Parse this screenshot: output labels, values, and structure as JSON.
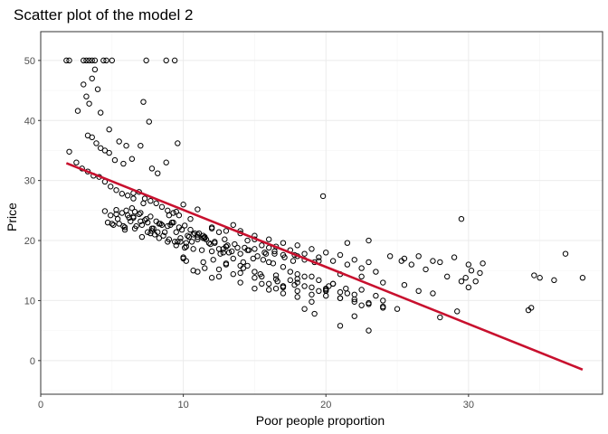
{
  "chart_data": {
    "type": "scatter",
    "title": "Scatter plot of the model 2",
    "xlabel": "Poor people proportion",
    "ylabel": "Price",
    "xlim": [
      0,
      39.4
    ],
    "ylim": [
      -5.6,
      54.8
    ],
    "x_ticks": [
      0,
      10,
      20,
      30
    ],
    "x_tick_labels": [
      "0",
      "10",
      "20",
      "30"
    ],
    "y_ticks": [
      0,
      10,
      20,
      30,
      40,
      50
    ],
    "y_tick_labels": [
      "0",
      "10",
      "20",
      "30",
      "40",
      "50"
    ],
    "grid": true,
    "colors": {
      "points": "#000000",
      "fit_line": "#c8102e",
      "grid": "#ebebeb",
      "border": "#333333"
    },
    "fit_line": {
      "x": [
        1.8,
        38.0
      ],
      "y": [
        32.9,
        -1.5
      ]
    },
    "points": {
      "x": [
        1.8,
        2.0,
        3.0,
        3.2,
        3.4,
        3.6,
        3.8,
        4.4,
        4.6,
        5.0,
        7.4,
        8.8,
        9.4,
        3.0,
        3.2,
        3.4,
        3.6,
        3.8,
        4.0,
        4.2,
        4.8,
        5.5,
        6.0,
        7.2,
        7.6,
        2.6,
        3.3,
        3.6,
        3.9,
        4.2,
        4.5,
        4.8,
        5.2,
        5.8,
        6.4,
        7.0,
        7.8,
        8.2,
        8.8,
        9.6,
        2.0,
        2.5,
        2.9,
        3.3,
        3.7,
        4.1,
        4.5,
        4.9,
        5.3,
        5.7,
        6.1,
        6.5,
        6.9,
        7.3,
        7.7,
        8.1,
        8.5,
        8.9,
        9.3,
        9.7,
        4.5,
        4.9,
        5.3,
        5.7,
        6.1,
        6.5,
        6.9,
        7.3,
        7.7,
        8.1,
        8.5,
        8.9,
        9.3,
        9.7,
        10.1,
        10.5,
        4.7,
        5.1,
        5.5,
        5.9,
        6.3,
        6.7,
        7.1,
        7.5,
        7.9,
        8.3,
        8.7,
        9.1,
        9.5,
        9.9,
        10.3,
        10.7,
        11.1,
        5.0,
        5.4,
        5.8,
        6.2,
        6.6,
        7.0,
        7.4,
        7.8,
        8.2,
        8.6,
        9.0,
        9.4,
        9.8,
        10.2,
        10.6,
        11.0,
        11.4,
        11.8,
        5.3,
        5.9,
        6.5,
        7.1,
        7.7,
        8.3,
        8.9,
        9.5,
        10.1,
        10.7,
        11.3,
        11.9,
        12.5,
        13.1,
        6.0,
        6.6,
        7.2,
        7.8,
        8.4,
        9.0,
        9.6,
        10.2,
        10.8,
        11.4,
        12.0,
        12.6,
        13.2,
        13.8,
        9.5,
        10.0,
        10.5,
        11.0,
        11.5,
        12.0,
        12.5,
        13.0,
        13.5,
        14.0,
        14.5,
        15.0,
        15.5,
        16.0,
        9.8,
        10.4,
        11.0,
        11.6,
        12.2,
        12.8,
        13.4,
        14.0,
        14.6,
        15.2,
        15.8,
        16.4,
        10.0,
        10.7,
        11.4,
        12.1,
        12.8,
        13.5,
        14.2,
        14.9,
        15.6,
        16.3,
        17.0,
        17.7,
        11.5,
        12.2,
        12.9,
        13.6,
        14.3,
        15.0,
        15.7,
        16.4,
        17.1,
        17.8,
        18.5,
        19.2,
        11.0,
        12.0,
        13.0,
        14.0,
        15.0,
        16.0,
        17.0,
        18.0,
        12.5,
        13.5,
        14.5,
        15.5,
        16.5,
        17.5,
        18.5,
        19.5,
        20.5,
        13.0,
        14.2,
        15.4,
        16.6,
        17.8,
        19.0,
        20.2,
        21.4,
        14.0,
        15.0,
        16.0,
        17.0,
        18.0,
        19.0,
        20.0,
        21.0,
        22.0,
        15.5,
        16.5,
        17.5,
        18.5,
        19.5,
        20.5,
        21.5,
        22.5,
        23.5,
        16.0,
        17.0,
        18.0,
        19.0,
        20.0,
        21.0,
        22.0,
        23.0,
        24.0,
        17.0,
        18.0,
        19.0,
        20.0,
        21.0,
        22.0,
        23.0,
        24.0,
        25.0,
        12.0,
        13.0,
        14.0,
        15.0,
        16.0,
        17.0,
        18.0,
        19.0,
        20.0,
        21.0,
        22.0,
        23.0,
        16.5,
        17.5,
        18.5,
        19.5,
        20.5,
        21.5,
        22.5,
        23.5,
        18.0,
        19.5,
        21.0,
        22.5,
        24.0,
        25.5,
        26.5,
        27.5,
        19.8,
        21.5,
        23.0,
        24.5,
        25.3,
        26.0,
        27.0,
        28.5,
        29.5,
        25.5,
        26.5,
        27.5,
        28.0,
        29.0,
        30.0,
        30.2,
        30.8,
        31.0,
        29.5,
        29.8,
        30.5,
        30.0,
        34.2,
        34.4,
        34.6,
        35.0,
        36.0,
        36.8,
        38.0,
        10.0,
        10.2,
        11.5,
        12.5,
        14.0,
        15.0,
        17.0,
        18.5,
        19.2,
        21.0,
        22.0,
        23.0,
        6.4,
        6.5,
        7.0,
        7.5,
        8.0,
        9.2,
        11.0,
        13.0,
        14.5,
        16.5,
        18.0,
        20.0,
        22.5,
        24.0,
        28.0,
        29.2
      ],
      "y": [
        50,
        50,
        50,
        50,
        50,
        50,
        50,
        50,
        50,
        50,
        50,
        50,
        50,
        46.0,
        44.0,
        42.8,
        47.0,
        48.5,
        45.2,
        41.3,
        38.5,
        36.5,
        35.8,
        43.1,
        39.8,
        41.6,
        37.5,
        37.2,
        36.2,
        35.4,
        35.0,
        34.6,
        33.4,
        32.8,
        33.6,
        35.8,
        32.0,
        31.2,
        33.0,
        36.2,
        34.8,
        33.0,
        32.0,
        31.5,
        30.8,
        30.6,
        29.8,
        29.0,
        28.4,
        27.8,
        27.5,
        27.9,
        28.1,
        27.0,
        26.6,
        26.2,
        25.6,
        25.0,
        24.6,
        24.2,
        24.9,
        24.2,
        25.1,
        24.6,
        24.2,
        23.8,
        24.4,
        23.4,
        24.0,
        23.2,
        22.6,
        22.4,
        23.0,
        22.2,
        22.5,
        21.8,
        23.0,
        22.6,
        22.8,
        22.2,
        23.2,
        22.4,
        22.6,
        23.0,
        22.0,
        22.8,
        21.4,
        22.6,
        21.4,
        21.8,
        20.8,
        21.0,
        21.2,
        22.8,
        23.6,
        22.4,
        23.8,
        22.0,
        24.6,
        23.6,
        22.0,
        21.4,
        20.8,
        20.2,
        19.8,
        20.4,
        19.6,
        19.8,
        20.2,
        20.4,
        19.6,
        24.4,
        21.8,
        24.0,
        20.6,
        21.2,
        20.4,
        19.8,
        19.2,
        18.8,
        18.6,
        18.4,
        19.4,
        18.6,
        19.2,
        25.0,
        24.8,
        26.2,
        21.6,
        22.8,
        24.2,
        19.8,
        19.0,
        21.2,
        20.8,
        18.2,
        17.8,
        18.0,
        18.8,
        24.8,
        26.0,
        23.6,
        25.2,
        20.6,
        22.2,
        21.4,
        19.0,
        22.6,
        21.6,
        20.0,
        20.2,
        19.2,
        18.8,
        19.8,
        20.6,
        21.0,
        20.2,
        19.6,
        18.6,
        18.2,
        17.8,
        18.4,
        17.4,
        17.8,
        18.2,
        17.2,
        15.0,
        16.4,
        16.8,
        18.0,
        17.0,
        16.4,
        17.0,
        16.8,
        16.2,
        17.6,
        16.6,
        20.4,
        19.8,
        20.2,
        19.4,
        18.8,
        18.6,
        18.0,
        17.8,
        17.2,
        17.6,
        16.8,
        16.4,
        14.8,
        13.8,
        16.0,
        15.8,
        14.8,
        16.4,
        15.6,
        14.4,
        15.2,
        14.4,
        15.8,
        14.0,
        13.6,
        14.8,
        14.0,
        13.4,
        12.8,
        16.2,
        15.4,
        14.4,
        13.2,
        12.6,
        14.0,
        12.4,
        12.0,
        14.6,
        13.8,
        12.8,
        12.4,
        13.0,
        12.2,
        11.8,
        11.4,
        11.0,
        12.8,
        12.0,
        13.4,
        12.4,
        11.6,
        12.8,
        11.2,
        11.8,
        10.8,
        11.8,
        11.2,
        10.6,
        9.8,
        11.6,
        10.4,
        10.2,
        9.6,
        10.0,
        12.2,
        11.6,
        11.0,
        10.8,
        10.4,
        9.8,
        9.4,
        9.0,
        8.6,
        22.0,
        21.6,
        21.2,
        20.8,
        20.2,
        19.6,
        19.2,
        18.6,
        18.0,
        17.6,
        16.8,
        16.4,
        19.0,
        18.4,
        17.8,
        17.2,
        16.6,
        16.0,
        15.4,
        14.8,
        17.4,
        16.6,
        14.4,
        14.0,
        13.0,
        12.6,
        11.6,
        11.2,
        27.4,
        19.6,
        20.0,
        17.4,
        16.6,
        16.0,
        15.2,
        14.0,
        13.2,
        17.0,
        17.4,
        16.6,
        16.4,
        17.2,
        16.0,
        15.0,
        14.6,
        16.2,
        23.6,
        13.8,
        13.2,
        12.2,
        8.4,
        8.8,
        14.2,
        13.8,
        13.4,
        17.8,
        13.8,
        17.0,
        16.6,
        15.4,
        14.0,
        13.0,
        12.0,
        12.4,
        8.6,
        7.8,
        5.8,
        7.4,
        5.0,
        25.4,
        27.0,
        23.2,
        21.4,
        21.0,
        23.0,
        20.6,
        19.0,
        18.4,
        14.2,
        13.6,
        12.0,
        9.2,
        8.8,
        7.2,
        8.2
      ]
    }
  }
}
